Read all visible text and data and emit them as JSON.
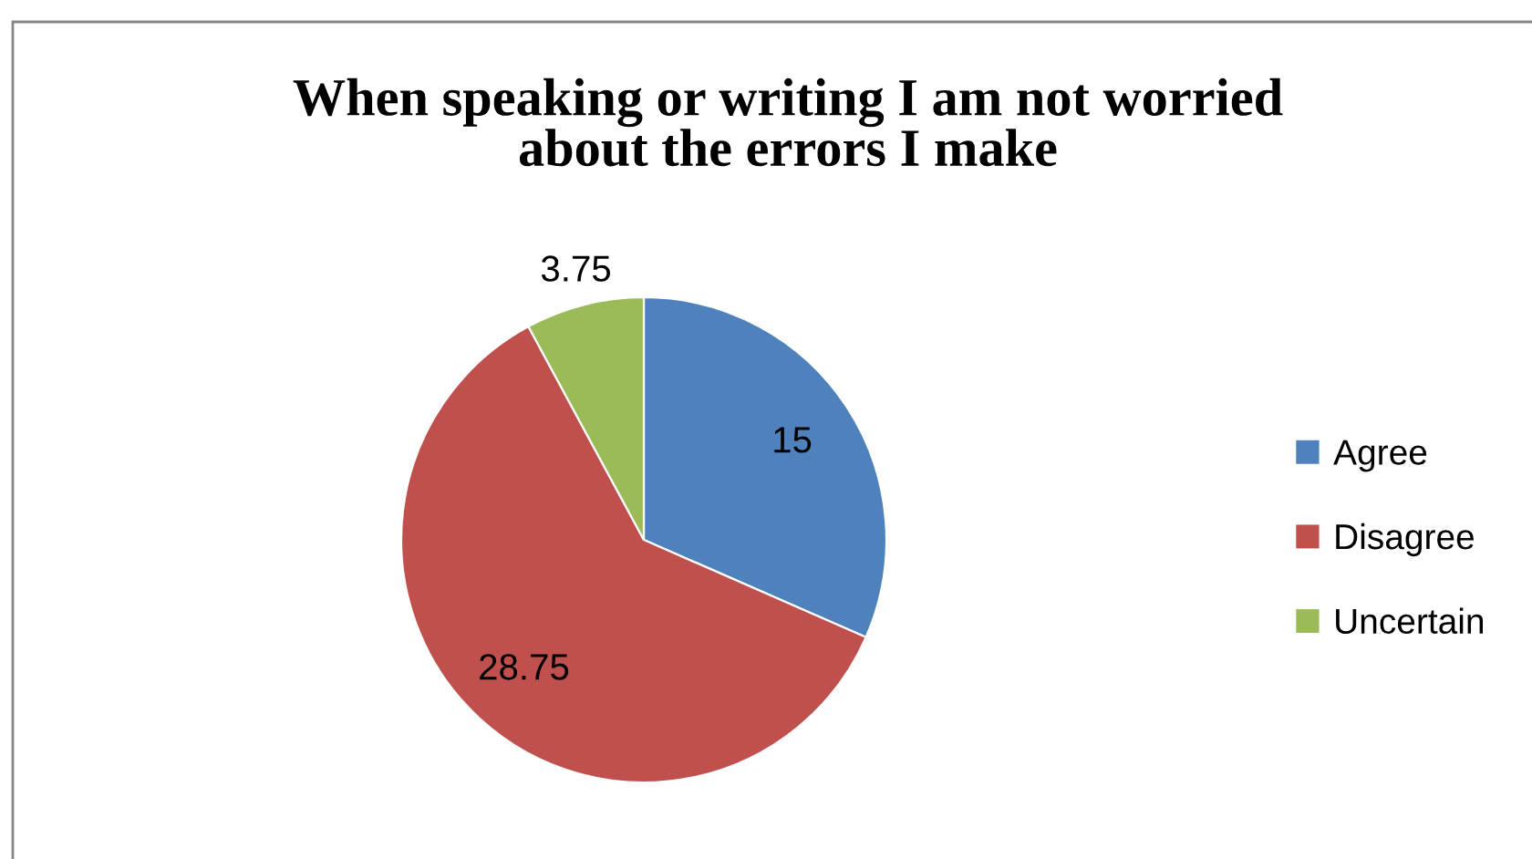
{
  "chart_data": {
    "type": "pie",
    "title": "When speaking or writing I am not worried\nabout the errors I make",
    "categories": [
      "Agree",
      "Disagree",
      "Uncertain"
    ],
    "values": [
      15,
      28.75,
      3.75
    ],
    "colors": [
      "#4f81bd",
      "#c0504d",
      "#9bbb59"
    ],
    "data_labels": true,
    "legend": "right"
  }
}
